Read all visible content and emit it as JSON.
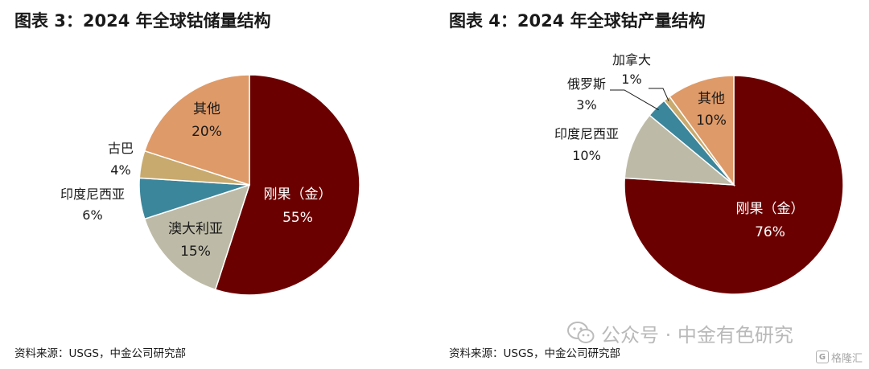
{
  "chart_data": [
    {
      "type": "pie",
      "title": "图表 3：2024 年全球钴储量结构",
      "source": "资料来源：USGS，中金公司研究部",
      "slices": [
        {
          "label": "刚果（金）",
          "value": 55,
          "value_label": "55%",
          "color": "#6b0000",
          "label_color": "#ffffff"
        },
        {
          "label": "澳大利亚",
          "value": 15,
          "value_label": "15%",
          "color": "#bdbba7",
          "label_color": "#1a1a1a"
        },
        {
          "label": "印度尼西亚",
          "value": 6,
          "value_label": "6%",
          "color": "#3c869c",
          "label_color": "#1a1a1a"
        },
        {
          "label": "古巴",
          "value": 4,
          "value_label": "4%",
          "color": "#c9aa6e",
          "label_color": "#1a1a1a"
        },
        {
          "label": "其他",
          "value": 20,
          "value_label": "20%",
          "color": "#de9a68",
          "label_color": "#1a1a1a"
        }
      ]
    },
    {
      "type": "pie",
      "title": "图表 4：2024 年全球钴产量结构",
      "source": "资料来源：USGS，中金公司研究部",
      "slices": [
        {
          "label": "刚果（金）",
          "value": 76,
          "value_label": "76%",
          "color": "#6b0000",
          "label_color": "#ffffff"
        },
        {
          "label": "印度尼西亚",
          "value": 10,
          "value_label": "10%",
          "color": "#bdbba7",
          "label_color": "#1a1a1a"
        },
        {
          "label": "俄罗斯",
          "value": 3,
          "value_label": "3%",
          "color": "#3c869c",
          "label_color": "#1a1a1a"
        },
        {
          "label": "加拿大",
          "value": 1,
          "value_label": "1%",
          "color": "#c9aa6e",
          "label_color": "#1a1a1a"
        },
        {
          "label": "其他",
          "value": 10,
          "value_label": "10%",
          "color": "#de9a68",
          "label_color": "#1a1a1a"
        }
      ]
    }
  ],
  "watermark": {
    "text": "公众号 · 中金有色研究",
    "icon": "wechat-icon"
  },
  "logo": {
    "badge": "G",
    "text": "格隆汇"
  }
}
